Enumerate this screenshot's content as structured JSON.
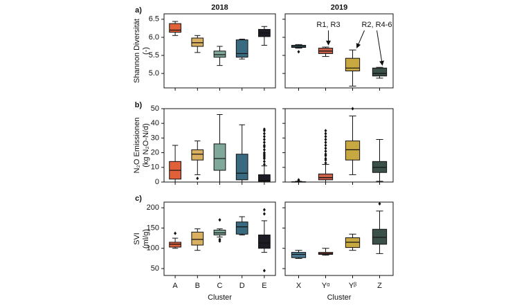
{
  "chart_data": [
    {
      "type": "box",
      "panel_label": "a)",
      "title": "2018",
      "ylabel": [
        "Shannon Diversität",
        "(-)"
      ],
      "ylim": [
        4.6,
        6.65
      ],
      "yticks": [
        {
          "value": 5,
          "label": "5.0"
        },
        {
          "value": 5.5,
          "label": "5.5"
        },
        {
          "value": 6,
          "label": "6.0"
        },
        {
          "value": 6.5,
          "label": "6.5"
        }
      ],
      "colors": [
        "#e0603a",
        "#d9b060",
        "#7fa89a",
        "#3a6a80",
        "#1c1c24"
      ],
      "boxes": [
        {
          "whislo": 6.05,
          "q1": 6.14,
          "med": 6.2,
          "q3": 6.38,
          "whishi": 6.44,
          "fliers": []
        },
        {
          "whislo": 5.58,
          "q1": 5.75,
          "med": 5.85,
          "q3": 5.98,
          "whishi": 6.05,
          "fliers": []
        },
        {
          "whislo": 5.22,
          "q1": 5.45,
          "med": 5.52,
          "q3": 5.62,
          "whishi": 5.75,
          "fliers": []
        },
        {
          "whislo": 5.4,
          "q1": 5.45,
          "med": 5.55,
          "q3": 5.93,
          "whishi": 5.95,
          "fliers": []
        },
        {
          "whislo": 5.78,
          "q1": 6.02,
          "med": 6.12,
          "q3": 6.22,
          "whishi": 6.3,
          "fliers": []
        }
      ]
    },
    {
      "type": "box",
      "title": "2019",
      "sharey": true,
      "ylim": [
        4.6,
        6.65
      ],
      "yticks": [
        5,
        5.5,
        6,
        6.5
      ],
      "colors": [
        "#4a7a90",
        "#c8604a",
        "#c8a840",
        "#3a5048"
      ],
      "annotations": [
        "R1, R3",
        "R2, R4-6"
      ],
      "boxes": [
        {
          "whislo": 5.7,
          "q1": 5.72,
          "med": 5.75,
          "q3": 5.78,
          "whishi": 5.8,
          "fliers": [
            5.6
          ]
        },
        {
          "whislo": 5.47,
          "q1": 5.55,
          "med": 5.62,
          "q3": 5.7,
          "whishi": 5.73,
          "fliers": []
        },
        {
          "whislo": 4.65,
          "q1": 5.07,
          "med": 5.15,
          "q3": 5.42,
          "whishi": 5.65,
          "fliers": []
        },
        {
          "whislo": 4.87,
          "q1": 4.93,
          "med": 5.0,
          "q3": 5.15,
          "whishi": 5.17,
          "fliers": []
        }
      ]
    },
    {
      "type": "box",
      "panel_label": "b)",
      "ylabel": [
        "N₂O Emissionen",
        "(kg N₂O-N/d)"
      ],
      "ylim": [
        0,
        50
      ],
      "yticks": [
        0,
        10,
        20,
        30,
        40,
        50
      ],
      "colors": [
        "#e0603a",
        "#d9b060",
        "#7fa89a",
        "#3a6a80",
        "#1c1c24"
      ],
      "boxes": [
        {
          "whislo": 0,
          "q1": 2,
          "med": 8,
          "q3": 14,
          "whishi": 25,
          "fliers": []
        },
        {
          "whislo": 5,
          "q1": 15,
          "med": 19,
          "q3": 22,
          "whishi": 28,
          "fliers": [
            2.5
          ]
        },
        {
          "whislo": 0,
          "q1": 8,
          "med": 16,
          "q3": 26,
          "whishi": 46,
          "fliers": []
        },
        {
          "whislo": 0,
          "q1": 1.5,
          "med": 6,
          "q3": 19,
          "whishi": 39,
          "fliers": []
        },
        {
          "whislo": 0,
          "q1": 0.5,
          "med": 1,
          "q3": 5,
          "whishi": 11,
          "fliers": [
            12,
            14,
            16,
            17,
            18,
            19,
            20,
            22,
            24,
            25,
            27,
            29,
            31,
            33,
            35,
            36
          ]
        }
      ]
    },
    {
      "type": "box",
      "sharey": true,
      "ylim": [
        0,
        50
      ],
      "yticks": [
        0,
        10,
        20,
        30,
        40,
        50
      ],
      "colors": [
        "#4a7a90",
        "#c8604a",
        "#c8a840",
        "#3a5048"
      ],
      "boxes": [
        {
          "whislo": 0,
          "q1": 0,
          "med": 0,
          "q3": 0.2,
          "whishi": 0.5,
          "fliers": [
            0.8,
            1.5
          ]
        },
        {
          "whislo": 0,
          "q1": 1.5,
          "med": 3,
          "q3": 5.5,
          "whishi": 12,
          "fliers": [
            13,
            15,
            16,
            18,
            19,
            21,
            23,
            25,
            27,
            29,
            31,
            33,
            35
          ]
        },
        {
          "whislo": 5,
          "q1": 15,
          "med": 22,
          "q3": 28,
          "whishi": 45,
          "fliers": [
            50
          ]
        },
        {
          "whislo": 0.5,
          "q1": 6.5,
          "med": 10,
          "q3": 14,
          "whishi": 29,
          "fliers": []
        }
      ]
    },
    {
      "type": "box",
      "panel_label": "c)",
      "ylabel": [
        "SVI",
        "(ml/g)"
      ],
      "xlabel": "Cluster",
      "ylim": [
        33,
        214
      ],
      "yticks": [
        50,
        100,
        150,
        200
      ],
      "categories": [
        "A",
        "B",
        "C",
        "D",
        "E"
      ],
      "colors": [
        "#e0603a",
        "#d9b060",
        "#7fa89a",
        "#3a6a80",
        "#1c1c24"
      ],
      "boxes": [
        {
          "whislo": 100,
          "q1": 103,
          "med": 110,
          "q3": 115,
          "whishi": 125,
          "fliers": [
            137
          ]
        },
        {
          "whislo": 95,
          "q1": 108,
          "med": 122,
          "q3": 140,
          "whishi": 148,
          "fliers": []
        },
        {
          "whislo": 128,
          "q1": 133,
          "med": 138,
          "q3": 145,
          "whishi": 148,
          "fliers": [
            118,
            122,
            170
          ]
        },
        {
          "whislo": 133,
          "q1": 135,
          "med": 153,
          "q3": 165,
          "whishi": 178,
          "fliers": []
        },
        {
          "whislo": 90,
          "q1": 100,
          "med": 113,
          "q3": 133,
          "whishi": 168,
          "fliers": [
            45,
            185,
            195
          ]
        }
      ]
    },
    {
      "type": "box",
      "sharey": true,
      "xlabel": "Cluster",
      "ylim": [
        33,
        214
      ],
      "yticks": [
        50,
        100,
        150,
        200
      ],
      "categories": [
        "X",
        "Yᵅ",
        "Yᵝ",
        "Z"
      ],
      "colors": [
        "#4a7a90",
        "#c8604a",
        "#c8a840",
        "#3a5048"
      ],
      "boxes": [
        {
          "whislo": 75,
          "q1": 77,
          "med": 85,
          "q3": 90,
          "whishi": 95,
          "fliers": []
        },
        {
          "whislo": 83,
          "q1": 85,
          "med": 87,
          "q3": 90,
          "whishi": 100,
          "fliers": []
        },
        {
          "whislo": 95,
          "q1": 102,
          "med": 115,
          "q3": 126,
          "whishi": 135,
          "fliers": []
        },
        {
          "whislo": 87,
          "q1": 110,
          "med": 127,
          "q3": 147,
          "whishi": 192,
          "fliers": [
            210
          ]
        }
      ]
    }
  ]
}
